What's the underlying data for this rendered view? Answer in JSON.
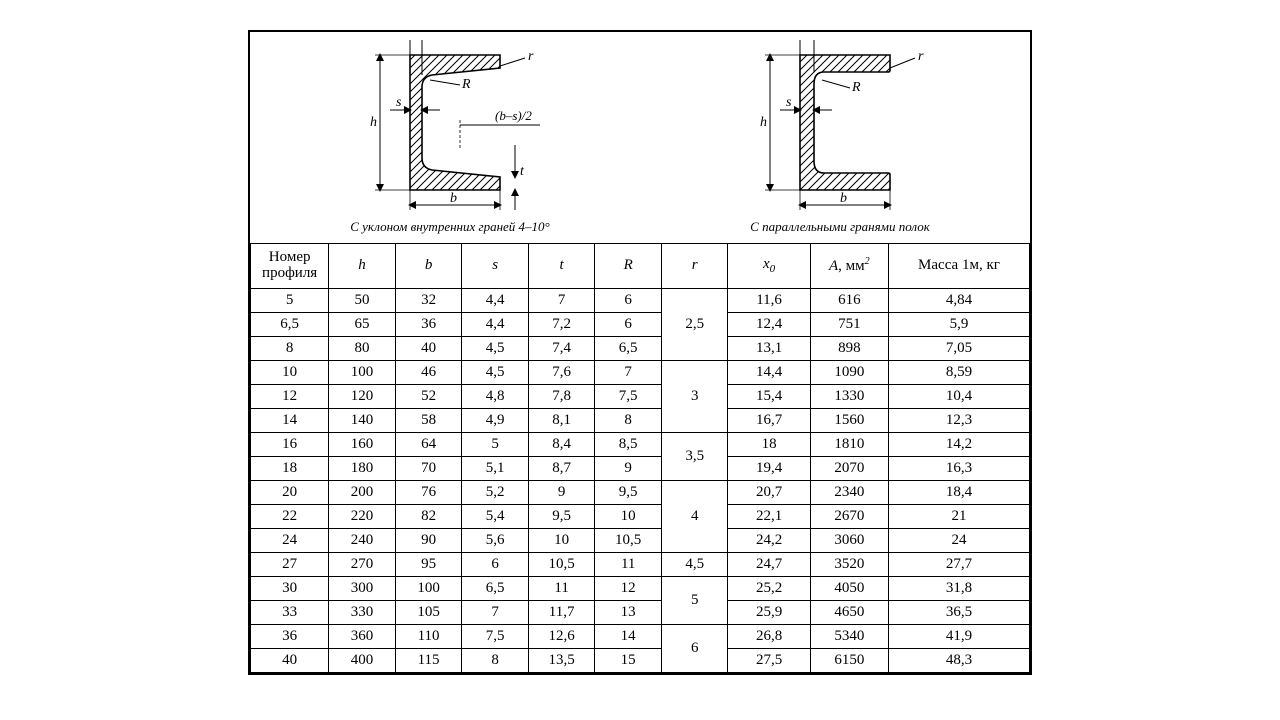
{
  "captions": {
    "left": "С уклоном внутренних граней 4–10°",
    "right": "С параллельными гранями полок"
  },
  "diagrams": {
    "labels": {
      "h": "h",
      "b": "b",
      "s": "s",
      "t": "t",
      "R": "R",
      "r": "r",
      "bs2": "(b–s)/2"
    },
    "hatch_color": "#000000",
    "line_width": 1.2
  },
  "table": {
    "columns": [
      {
        "key": "no",
        "label": "Номер профиля",
        "italic": false
      },
      {
        "key": "h",
        "label": "h"
      },
      {
        "key": "b",
        "label": "b"
      },
      {
        "key": "s",
        "label": "s"
      },
      {
        "key": "t",
        "label": "t"
      },
      {
        "key": "R",
        "label": "R"
      },
      {
        "key": "r",
        "label": "r"
      },
      {
        "key": "x0",
        "label": "x",
        "sub": "0"
      },
      {
        "key": "A",
        "label": "A, мм",
        "sup": "2",
        "italic_part": "A"
      },
      {
        "key": "mass",
        "label": "Масса 1м, кг",
        "italic": false
      }
    ],
    "groups": [
      {
        "r": "2,5",
        "rows": [
          {
            "no": "5",
            "h": "50",
            "b": "32",
            "s": "4,4",
            "t": "7",
            "R": "6",
            "x0": "11,6",
            "A": "616",
            "mass": "4,84"
          },
          {
            "no": "6,5",
            "h": "65",
            "b": "36",
            "s": "4,4",
            "t": "7,2",
            "R": "6",
            "x0": "12,4",
            "A": "751",
            "mass": "5,9"
          },
          {
            "no": "8",
            "h": "80",
            "b": "40",
            "s": "4,5",
            "t": "7,4",
            "R": "6,5",
            "x0": "13,1",
            "A": "898",
            "mass": "7,05"
          }
        ]
      },
      {
        "r": "3",
        "rows": [
          {
            "no": "10",
            "h": "100",
            "b": "46",
            "s": "4,5",
            "t": "7,6",
            "R": "7",
            "x0": "14,4",
            "A": "1090",
            "mass": "8,59"
          },
          {
            "no": "12",
            "h": "120",
            "b": "52",
            "s": "4,8",
            "t": "7,8",
            "R": "7,5",
            "x0": "15,4",
            "A": "1330",
            "mass": "10,4"
          },
          {
            "no": "14",
            "h": "140",
            "b": "58",
            "s": "4,9",
            "t": "8,1",
            "R": "8",
            "x0": "16,7",
            "A": "1560",
            "mass": "12,3"
          }
        ]
      },
      {
        "r": "3,5",
        "rows": [
          {
            "no": "16",
            "h": "160",
            "b": "64",
            "s": "5",
            "t": "8,4",
            "R": "8,5",
            "x0": "18",
            "A": "1810",
            "mass": "14,2"
          },
          {
            "no": "18",
            "h": "180",
            "b": "70",
            "s": "5,1",
            "t": "8,7",
            "R": "9",
            "x0": "19,4",
            "A": "2070",
            "mass": "16,3"
          }
        ]
      },
      {
        "r": "4",
        "rows": [
          {
            "no": "20",
            "h": "200",
            "b": "76",
            "s": "5,2",
            "t": "9",
            "R": "9,5",
            "x0": "20,7",
            "A": "2340",
            "mass": "18,4"
          },
          {
            "no": "22",
            "h": "220",
            "b": "82",
            "s": "5,4",
            "t": "9,5",
            "R": "10",
            "x0": "22,1",
            "A": "2670",
            "mass": "21"
          },
          {
            "no": "24",
            "h": "240",
            "b": "90",
            "s": "5,6",
            "t": "10",
            "R": "10,5",
            "x0": "24,2",
            "A": "3060",
            "mass": "24"
          }
        ]
      },
      {
        "r": "4,5",
        "rows": [
          {
            "no": "27",
            "h": "270",
            "b": "95",
            "s": "6",
            "t": "10,5",
            "R": "11",
            "x0": "24,7",
            "A": "3520",
            "mass": "27,7"
          }
        ]
      },
      {
        "r": "5",
        "rows": [
          {
            "no": "30",
            "h": "300",
            "b": "100",
            "s": "6,5",
            "t": "11",
            "R": "12",
            "x0": "25,2",
            "A": "4050",
            "mass": "31,8"
          },
          {
            "no": "33",
            "h": "330",
            "b": "105",
            "s": "7",
            "t": "11,7",
            "R": "13",
            "x0": "25,9",
            "A": "4650",
            "mass": "36,5"
          }
        ]
      },
      {
        "r": "6",
        "rows": [
          {
            "no": "36",
            "h": "360",
            "b": "110",
            "s": "7,5",
            "t": "12,6",
            "R": "14",
            "x0": "26,8",
            "A": "5340",
            "mass": "41,9"
          },
          {
            "no": "40",
            "h": "400",
            "b": "115",
            "s": "8",
            "t": "13,5",
            "R": "15",
            "x0": "27,5",
            "A": "6150",
            "mass": "48,3"
          }
        ]
      }
    ],
    "col_widths_pct": [
      10,
      8.5,
      8.5,
      8.5,
      8.5,
      8.5,
      8.5,
      10.5,
      10,
      18
    ],
    "fontsize": 15,
    "border_color": "#000000"
  }
}
